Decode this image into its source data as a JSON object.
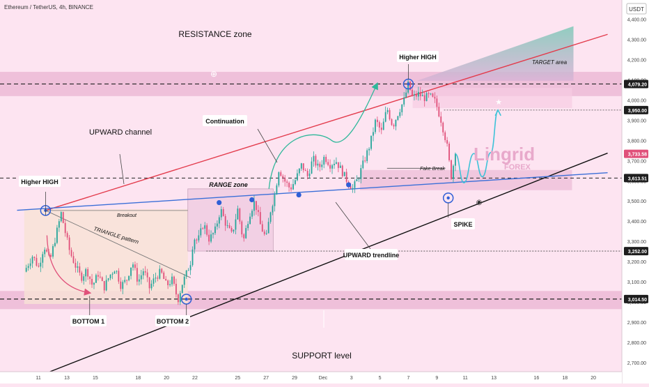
{
  "header": {
    "symbol_line": "Ethereum / TetherUS, 4h, BINANCE",
    "currency": "USDT"
  },
  "colors": {
    "background": "#fde4f1",
    "zone": "#e9b4d2",
    "candle_up": "#26a69a",
    "candle_down": "#e0507a",
    "channel_top": "#e33b4c",
    "support_line": "#111111",
    "trend_line": "#3a6fd8",
    "projection": "#3ec2d8",
    "arc": "#2fb89a",
    "target_fill": "#8ed0c0",
    "circle": "#2f5fd6",
    "axis_text": "#444444",
    "price_tag_dark": "#1e1e1e",
    "price_tag_live": "#e0507a"
  },
  "brand": {
    "word": "Lingrid",
    "sub": "FOREX"
  },
  "chart_data": {
    "type": "candlestick",
    "symbol": "ETH/USDT",
    "interval": "4h",
    "exchange": "BINANCE",
    "ylim": [
      2655,
      4495
    ],
    "y_ticks": [
      2700,
      2800,
      2900,
      3000,
      3100,
      3200,
      3300,
      3400,
      3500,
      3600,
      3700,
      3800,
      3900,
      4000,
      4100,
      4200,
      4300,
      4400
    ],
    "y_tick_labels": [
      "2,700.00",
      "2,800.00",
      "2,900.00",
      "3,000.00",
      "3,100.00",
      "3,200.00",
      "3,300.00",
      "3,400.00",
      "3,500.00",
      "3,600.00",
      "3,700.00",
      "3,800.00",
      "3,900.00",
      "4,000.00",
      "4,100.00",
      "4,200.00",
      "4,300.00",
      "4,400.00"
    ],
    "x_ticks": [
      {
        "label": "11",
        "day": 11
      },
      {
        "label": "13",
        "day": 13
      },
      {
        "label": "15",
        "day": 15
      },
      {
        "label": "18",
        "day": 18
      },
      {
        "label": "20",
        "day": 20
      },
      {
        "label": "22",
        "day": 22
      },
      {
        "label": "25",
        "day": 25
      },
      {
        "label": "27",
        "day": 27
      },
      {
        "label": "29",
        "day": 29
      },
      {
        "label": "Dec",
        "day": 31
      },
      {
        "label": "3",
        "day": 33
      },
      {
        "label": "5",
        "day": 35
      },
      {
        "label": "7",
        "day": 37
      },
      {
        "label": "9",
        "day": 39
      },
      {
        "label": "11",
        "day": 41
      },
      {
        "label": "13",
        "day": 43
      },
      {
        "label": "16",
        "day": 46
      },
      {
        "label": "18",
        "day": 48
      },
      {
        "label": "20",
        "day": 50
      }
    ],
    "price_tags": [
      {
        "price": 4079.2,
        "label": "4,079.20",
        "style": "dark"
      },
      {
        "price": 3950.0,
        "label": "3,950.00",
        "style": "dark"
      },
      {
        "price": 3733.58,
        "label": "3,733.58",
        "style": "live"
      },
      {
        "price": 3613.51,
        "label": "3,613.51",
        "style": "dark"
      },
      {
        "price": 3252.0,
        "label": "3,252.00",
        "style": "dark"
      },
      {
        "price": 3014.5,
        "label": "3,014.50",
        "style": "dark"
      }
    ],
    "path": [
      [
        10.0,
        3150
      ],
      [
        10.6,
        3230
      ],
      [
        11.0,
        3170
      ],
      [
        11.4,
        3280
      ],
      [
        11.8,
        3200
      ],
      [
        12.2,
        3320
      ],
      [
        12.6,
        3440
      ],
      [
        12.9,
        3340
      ],
      [
        13.2,
        3250
      ],
      [
        13.6,
        3180
      ],
      [
        14.0,
        3120
      ],
      [
        14.4,
        3160
      ],
      [
        14.8,
        3080
      ],
      [
        15.2,
        3140
      ],
      [
        15.6,
        3070
      ],
      [
        16.0,
        3130
      ],
      [
        16.4,
        3170
      ],
      [
        16.8,
        3080
      ],
      [
        17.2,
        3110
      ],
      [
        17.6,
        3200
      ],
      [
        18.0,
        3100
      ],
      [
        18.4,
        3160
      ],
      [
        18.8,
        3070
      ],
      [
        19.2,
        3120
      ],
      [
        19.6,
        3150
      ],
      [
        20.0,
        3080
      ],
      [
        20.4,
        3110
      ],
      [
        20.8,
        3010
      ],
      [
        21.1,
        3090
      ],
      [
        21.4,
        3140
      ],
      [
        21.7,
        3200
      ],
      [
        21.9,
        3320
      ],
      [
        22.2,
        3300
      ],
      [
        22.6,
        3390
      ],
      [
        23.0,
        3310
      ],
      [
        23.4,
        3350
      ],
      [
        23.8,
        3460
      ],
      [
        24.2,
        3380
      ],
      [
        24.6,
        3330
      ],
      [
        25.0,
        3460
      ],
      [
        25.4,
        3300
      ],
      [
        25.8,
        3430
      ],
      [
        26.2,
        3500
      ],
      [
        26.6,
        3380
      ],
      [
        27.0,
        3310
      ],
      [
        27.3,
        3450
      ],
      [
        27.6,
        3530
      ],
      [
        27.9,
        3660
      ],
      [
        28.3,
        3600
      ],
      [
        28.7,
        3560
      ],
      [
        29.1,
        3610
      ],
      [
        29.5,
        3680
      ],
      [
        29.9,
        3620
      ],
      [
        30.3,
        3710
      ],
      [
        30.7,
        3660
      ],
      [
        31.1,
        3720
      ],
      [
        31.5,
        3680
      ],
      [
        31.9,
        3700
      ],
      [
        32.3,
        3650
      ],
      [
        32.7,
        3600
      ],
      [
        33.1,
        3560
      ],
      [
        33.5,
        3620
      ],
      [
        33.9,
        3700
      ],
      [
        34.3,
        3780
      ],
      [
        34.7,
        3900
      ],
      [
        35.1,
        3840
      ],
      [
        35.5,
        3960
      ],
      [
        35.9,
        3870
      ],
      [
        36.3,
        3940
      ],
      [
        36.7,
        4000
      ],
      [
        37.0,
        4080
      ],
      [
        37.3,
        4010
      ],
      [
        37.7,
        4030
      ],
      [
        38.1,
        4010
      ],
      [
        38.5,
        4020
      ],
      [
        38.9,
        3990
      ],
      [
        39.3,
        3900
      ],
      [
        39.7,
        3780
      ],
      [
        40.0,
        3620
      ],
      [
        40.3,
        3733
      ]
    ],
    "levels": [
      {
        "name": "resistance",
        "price": 4079.2
      },
      {
        "name": "support",
        "price": 3014.5
      },
      {
        "name": "target",
        "price": 3950.0
      },
      {
        "name": "fake-break",
        "price": 3613.51
      },
      {
        "name": "range-low",
        "price": 3252.0
      }
    ],
    "channel_upper": [
      [
        11.5,
        3453
      ],
      [
        51.0,
        4325
      ]
    ],
    "channel_lower": [
      [
        10.0,
        2605
      ],
      [
        51.0,
        3737
      ]
    ],
    "trendline": [
      [
        9.5,
        3454
      ],
      [
        51.0,
        3640
      ]
    ],
    "projection": [
      [
        40.3,
        3733
      ],
      [
        40.9,
        3590
      ],
      [
        41.6,
        3735
      ],
      [
        42.2,
        3620
      ],
      [
        42.8,
        3740
      ],
      [
        43.3,
        3950
      ]
    ],
    "annotations": [
      {
        "key": "resistance_zone",
        "text": "RESISTANCE zone"
      },
      {
        "key": "upward_channel",
        "text": "UPWARD channel"
      },
      {
        "key": "higher_high_1",
        "text": "Higher HIGH"
      },
      {
        "key": "higher_high_2",
        "text": "Higher HIGH"
      },
      {
        "key": "continuation",
        "text": "Continuation"
      },
      {
        "key": "range_zone",
        "text": "RANGE zone"
      },
      {
        "key": "breakout",
        "text": "Breakout"
      },
      {
        "key": "triangle",
        "text": "TRIANGLE pattern"
      },
      {
        "key": "bottom1",
        "text": "BOTTOM  1"
      },
      {
        "key": "bottom2",
        "text": "BOTTOM 2"
      },
      {
        "key": "support_level",
        "text": "SUPPORT level"
      },
      {
        "key": "upward_trendline",
        "text": "UPWARD trendline"
      },
      {
        "key": "fake_break",
        "text": "Fake Break"
      },
      {
        "key": "spike",
        "text": "SPIKE"
      },
      {
        "key": "target_area",
        "text": "TARGET area"
      }
    ]
  }
}
